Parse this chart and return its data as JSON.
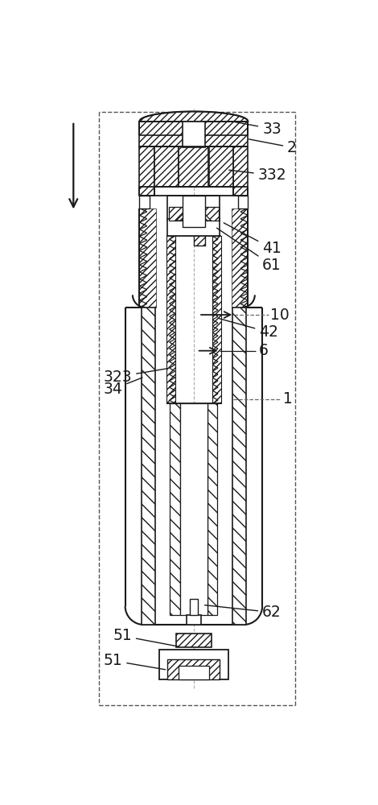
{
  "bg": "#ffffff",
  "lc": "#1a1a1a",
  "figsize": [
    4.7,
    10.0
  ],
  "dpi": 100
}
